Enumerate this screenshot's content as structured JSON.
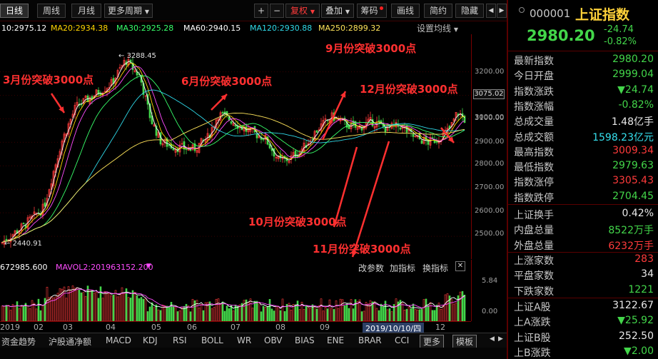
{
  "toolbar": {
    "periods": [
      "日线",
      "周线",
      "月线"
    ],
    "more_periods": "更多周期",
    "plus": "+",
    "minus": "−",
    "adjust": "复权",
    "overlay": "叠加",
    "chips": "筹码",
    "draw": "画线",
    "simple": "简约",
    "hide": "隐藏",
    "nav_prev": "◀",
    "nav_next": "▶"
  },
  "ma": {
    "items": [
      {
        "label": "10:2975.12",
        "color": "#ffffff"
      },
      {
        "label": "MA20:2934.38",
        "color": "#ffd400"
      },
      {
        "label": "MA30:2925.28",
        "color": "#38ff6a"
      },
      {
        "label": "MA60:2940.15",
        "color": "#ffffff"
      },
      {
        "label": "MA120:2930.88",
        "color": "#2fd9e8"
      },
      {
        "label": "MA250:2899.32",
        "color": "#ffe45a"
      }
    ],
    "setting_label": "设置均线"
  },
  "price_axis": {
    "ticks": [
      "3200.00",
      "3100.00",
      "3000.00",
      "2900.00",
      "2800.00",
      "2700.00",
      "2600.00",
      "2500.00"
    ],
    "current_box": "3075.02"
  },
  "chart_labels": {
    "high": "3288.45",
    "low": "2440.91"
  },
  "annotations": [
    {
      "text": "3月份突破3000点"
    },
    {
      "text": "6月份突破3000点"
    },
    {
      "text": "9月份突破3000点"
    },
    {
      "text": "12月份突破3000点"
    },
    {
      "text": "10月份突破3000点"
    },
    {
      "text": "11月份突破3000点"
    }
  ],
  "volume": {
    "vol1": "672985.600",
    "vol2": "MAVOL2:201963152.200",
    "params": "改参数",
    "add_indicator": "加指标",
    "switch_indicator": "换指标",
    "close": "✕",
    "axis": [
      "5.84",
      "0.00"
    ]
  },
  "date_axis": {
    "labels": [
      "2019",
      "02",
      "03",
      "04",
      "05",
      "06",
      "07",
      "08",
      "09",
      "12"
    ],
    "tooltip": "2019/10/10/四"
  },
  "bottom_tabs": [
    "资金趋势",
    "沪股通净额",
    "MACD",
    "KDJ",
    "RSI",
    "BOLL",
    "WR",
    "OBV",
    "BIAS",
    "ENE",
    "BRAR",
    "CCI"
  ],
  "bottom_more": "更多",
  "bottom_template": "模板",
  "panel": {
    "code": "000001",
    "name": "上证指数",
    "price": "2980.20",
    "change": "-24.74",
    "pct": "-0.82%",
    "stats": [
      {
        "key": "最新指数",
        "value": "2980.20",
        "color": "green"
      },
      {
        "key": "今日开盘",
        "value": "2999.04",
        "color": "green"
      },
      {
        "key": "指数涨跌",
        "value": "▼24.74",
        "color": "green"
      },
      {
        "key": "指数涨幅",
        "value": "-0.82%",
        "color": "green"
      },
      {
        "key": "总成交量",
        "value": "1.48亿手",
        "color": "white"
      },
      {
        "key": "总成交额",
        "value": "1598.23亿元",
        "color": "cyan"
      },
      {
        "key": "最高指数",
        "value": "3009.34",
        "color": "red"
      },
      {
        "key": "最低指数",
        "value": "2979.63",
        "color": "green"
      },
      {
        "key": "指数涨停",
        "value": "3305.43",
        "color": "red"
      },
      {
        "key": "指数跌停",
        "value": "2704.45",
        "color": "green"
      }
    ],
    "stats2": [
      {
        "key": "上证换手",
        "value": "0.42%",
        "color": "white"
      },
      {
        "key": "内盘总量",
        "value": "8522万手",
        "color": "green"
      },
      {
        "key": "外盘总量",
        "value": "6232万手",
        "color": "red"
      }
    ],
    "stats3": [
      {
        "key": "上涨家数",
        "value": "283",
        "color": "red"
      },
      {
        "key": "平盘家数",
        "value": "34",
        "color": "white"
      },
      {
        "key": "下跌家数",
        "value": "1221",
        "color": "green"
      }
    ],
    "stats4": [
      {
        "key": "上证A股",
        "value": "3122.67",
        "color": "white"
      },
      {
        "key": "上A涨跌",
        "value": "▼25.92",
        "color": "green"
      },
      {
        "key": "上证B股",
        "value": "252.50",
        "color": "white"
      },
      {
        "key": "上B涨跌",
        "value": "▼2.00",
        "color": "green"
      }
    ]
  },
  "colors": {
    "up": "#ff3b3b",
    "down": "#43d64a",
    "index_name": "#ffd23a",
    "axis_border": "#7a0000"
  }
}
